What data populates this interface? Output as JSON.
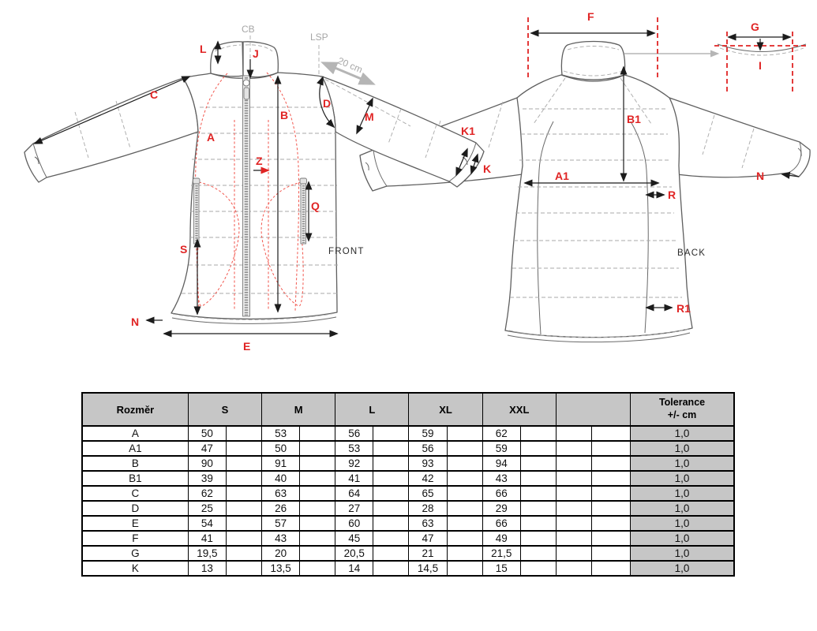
{
  "diagram": {
    "front": {
      "caption": "FRONT",
      "labels": {
        "L": "L",
        "J": "J",
        "C": "C",
        "A": "A",
        "B": "B",
        "D": "D",
        "M": "M",
        "Z": "Z",
        "Q": "Q",
        "S": "S",
        "N": "N",
        "E": "E",
        "K1": "K1",
        "K": "K"
      },
      "guides": {
        "center_back": "CB",
        "shoulder_point": "LSP",
        "sleeve_note": "20 cm"
      }
    },
    "back": {
      "caption": "BACK",
      "labels": {
        "F": "F",
        "B1": "B1",
        "A1": "A1",
        "R": "R",
        "R1": "R1",
        "N": "N"
      },
      "collar_detail": {
        "G": "G",
        "I": "I"
      }
    }
  },
  "table": {
    "header": {
      "dimension": "Rozměr",
      "sizes": [
        "S",
        "M",
        "L",
        "XL",
        "XXL"
      ],
      "blank": "",
      "tolerance_line1": "Tolerance",
      "tolerance_line2": "+/- cm"
    },
    "rows": [
      {
        "dim": "A",
        "values": [
          "50",
          "53",
          "56",
          "59",
          "62"
        ],
        "tol": "1,0"
      },
      {
        "dim": "A1",
        "values": [
          "47",
          "50",
          "53",
          "56",
          "59"
        ],
        "tol": "1,0"
      },
      {
        "dim": "B",
        "values": [
          "90",
          "91",
          "92",
          "93",
          "94"
        ],
        "tol": "1,0"
      },
      {
        "dim": "B1",
        "values": [
          "39",
          "40",
          "41",
          "42",
          "43"
        ],
        "tol": "1,0"
      },
      {
        "dim": "C",
        "values": [
          "62",
          "63",
          "64",
          "65",
          "66"
        ],
        "tol": "1,0"
      },
      {
        "dim": "D",
        "values": [
          "25",
          "26",
          "27",
          "28",
          "29"
        ],
        "tol": "1,0"
      },
      {
        "dim": "E",
        "values": [
          "54",
          "57",
          "60",
          "63",
          "66"
        ],
        "tol": "1,0"
      },
      {
        "dim": "F",
        "values": [
          "41",
          "43",
          "45",
          "47",
          "49"
        ],
        "tol": "1,0"
      },
      {
        "dim": "G",
        "values": [
          "19,5",
          "20",
          "20,5",
          "21",
          "21,5"
        ],
        "tol": "1,0"
      },
      {
        "dim": "K",
        "values": [
          "13",
          "13,5",
          "14",
          "14,5",
          "15"
        ],
        "tol": "1,0"
      }
    ]
  },
  "colors": {
    "label_red": "#e02424",
    "dashed_red": "#f2564d",
    "outline_grey": "#5f5f5f",
    "guide_grey": "#a6a6a6",
    "table_header_bg": "#c6c6c6"
  }
}
